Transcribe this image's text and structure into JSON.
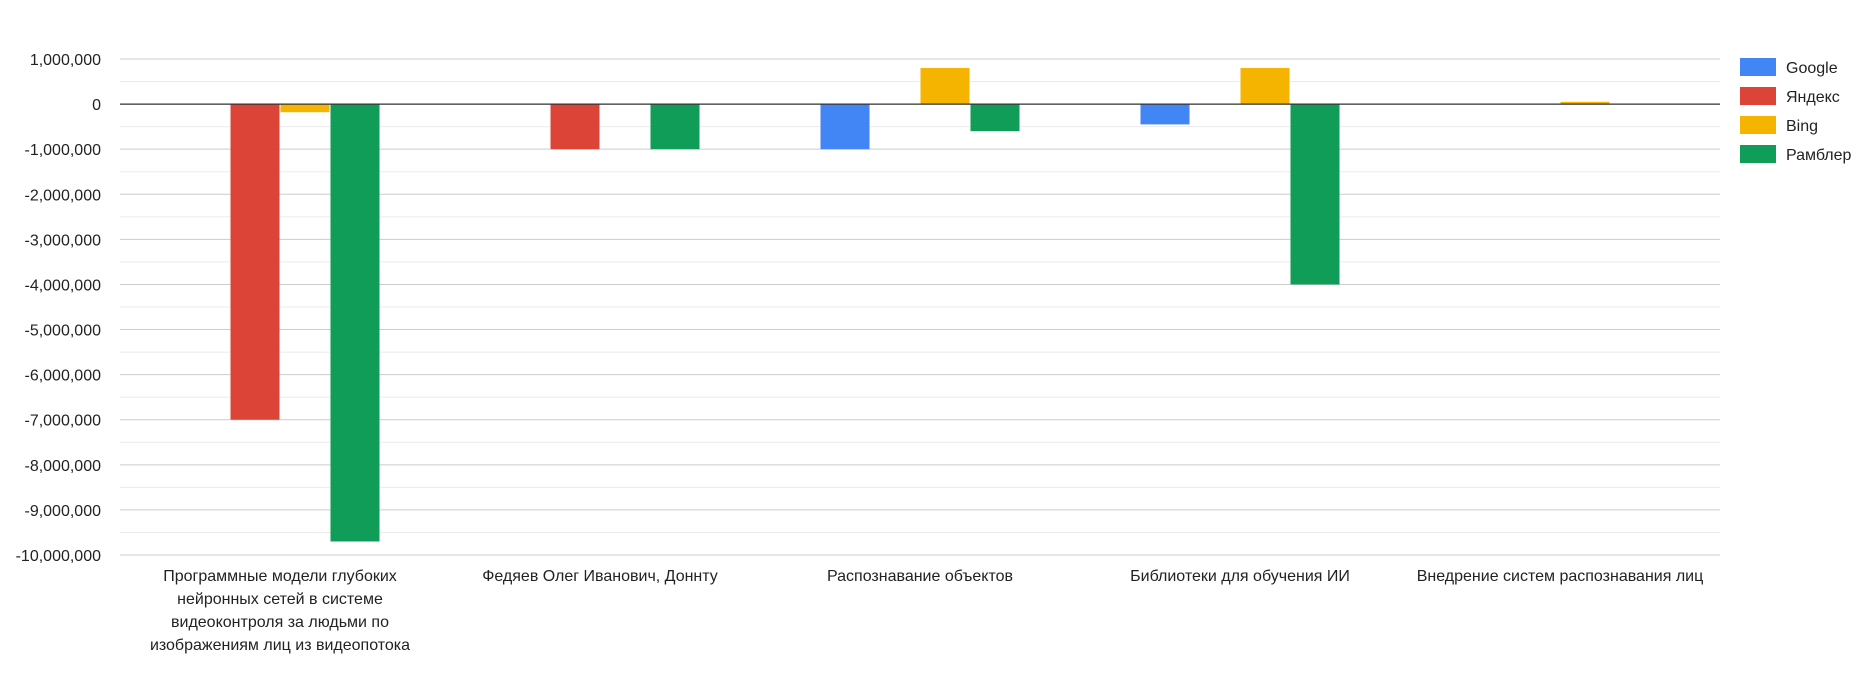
{
  "chart_data": {
    "type": "bar",
    "categories": [
      "Программные модели глубоких нейронных сетей в системе видеоконтроля за людьми по изображениям лиц из видеопотока",
      "Федяев Олег Иванович, Доннту",
      "Распознавание объектов",
      "Библиотеки для обучения ИИ",
      "Внедрение систем распознавания лиц"
    ],
    "series": [
      {
        "name": "Google",
        "color": "#4285F4",
        "values": [
          0,
          0,
          -1000000,
          -450000,
          0
        ]
      },
      {
        "name": "Яндекс",
        "color": "#DB4437",
        "values": [
          -7000000,
          -1000000,
          0,
          0,
          0
        ]
      },
      {
        "name": "Bing",
        "color": "#F4B400",
        "values": [
          -180000,
          0,
          800000,
          800000,
          50000
        ]
      },
      {
        "name": "Рамблер",
        "color": "#0F9D58",
        "values": [
          -9700000,
          -1000000,
          -600000,
          -4000000,
          0
        ]
      }
    ],
    "ylim": [
      -10000000,
      1000000
    ],
    "yticks": [
      1000000,
      0,
      -1000000,
      -2000000,
      -3000000,
      -4000000,
      -5000000,
      -6000000,
      -7000000,
      -8000000,
      -9000000,
      -10000000
    ],
    "ytick_labels": [
      "1,000,000",
      "0",
      "-1,000,000",
      "-2,000,000",
      "-3,000,000",
      "-4,000,000",
      "-5,000,000",
      "-6,000,000",
      "-7,000,000",
      "-8,000,000",
      "-9,000,000",
      "-10,000,000"
    ],
    "grid": true,
    "legend_position": "right",
    "title": "",
    "xlabel": "",
    "ylabel": ""
  }
}
